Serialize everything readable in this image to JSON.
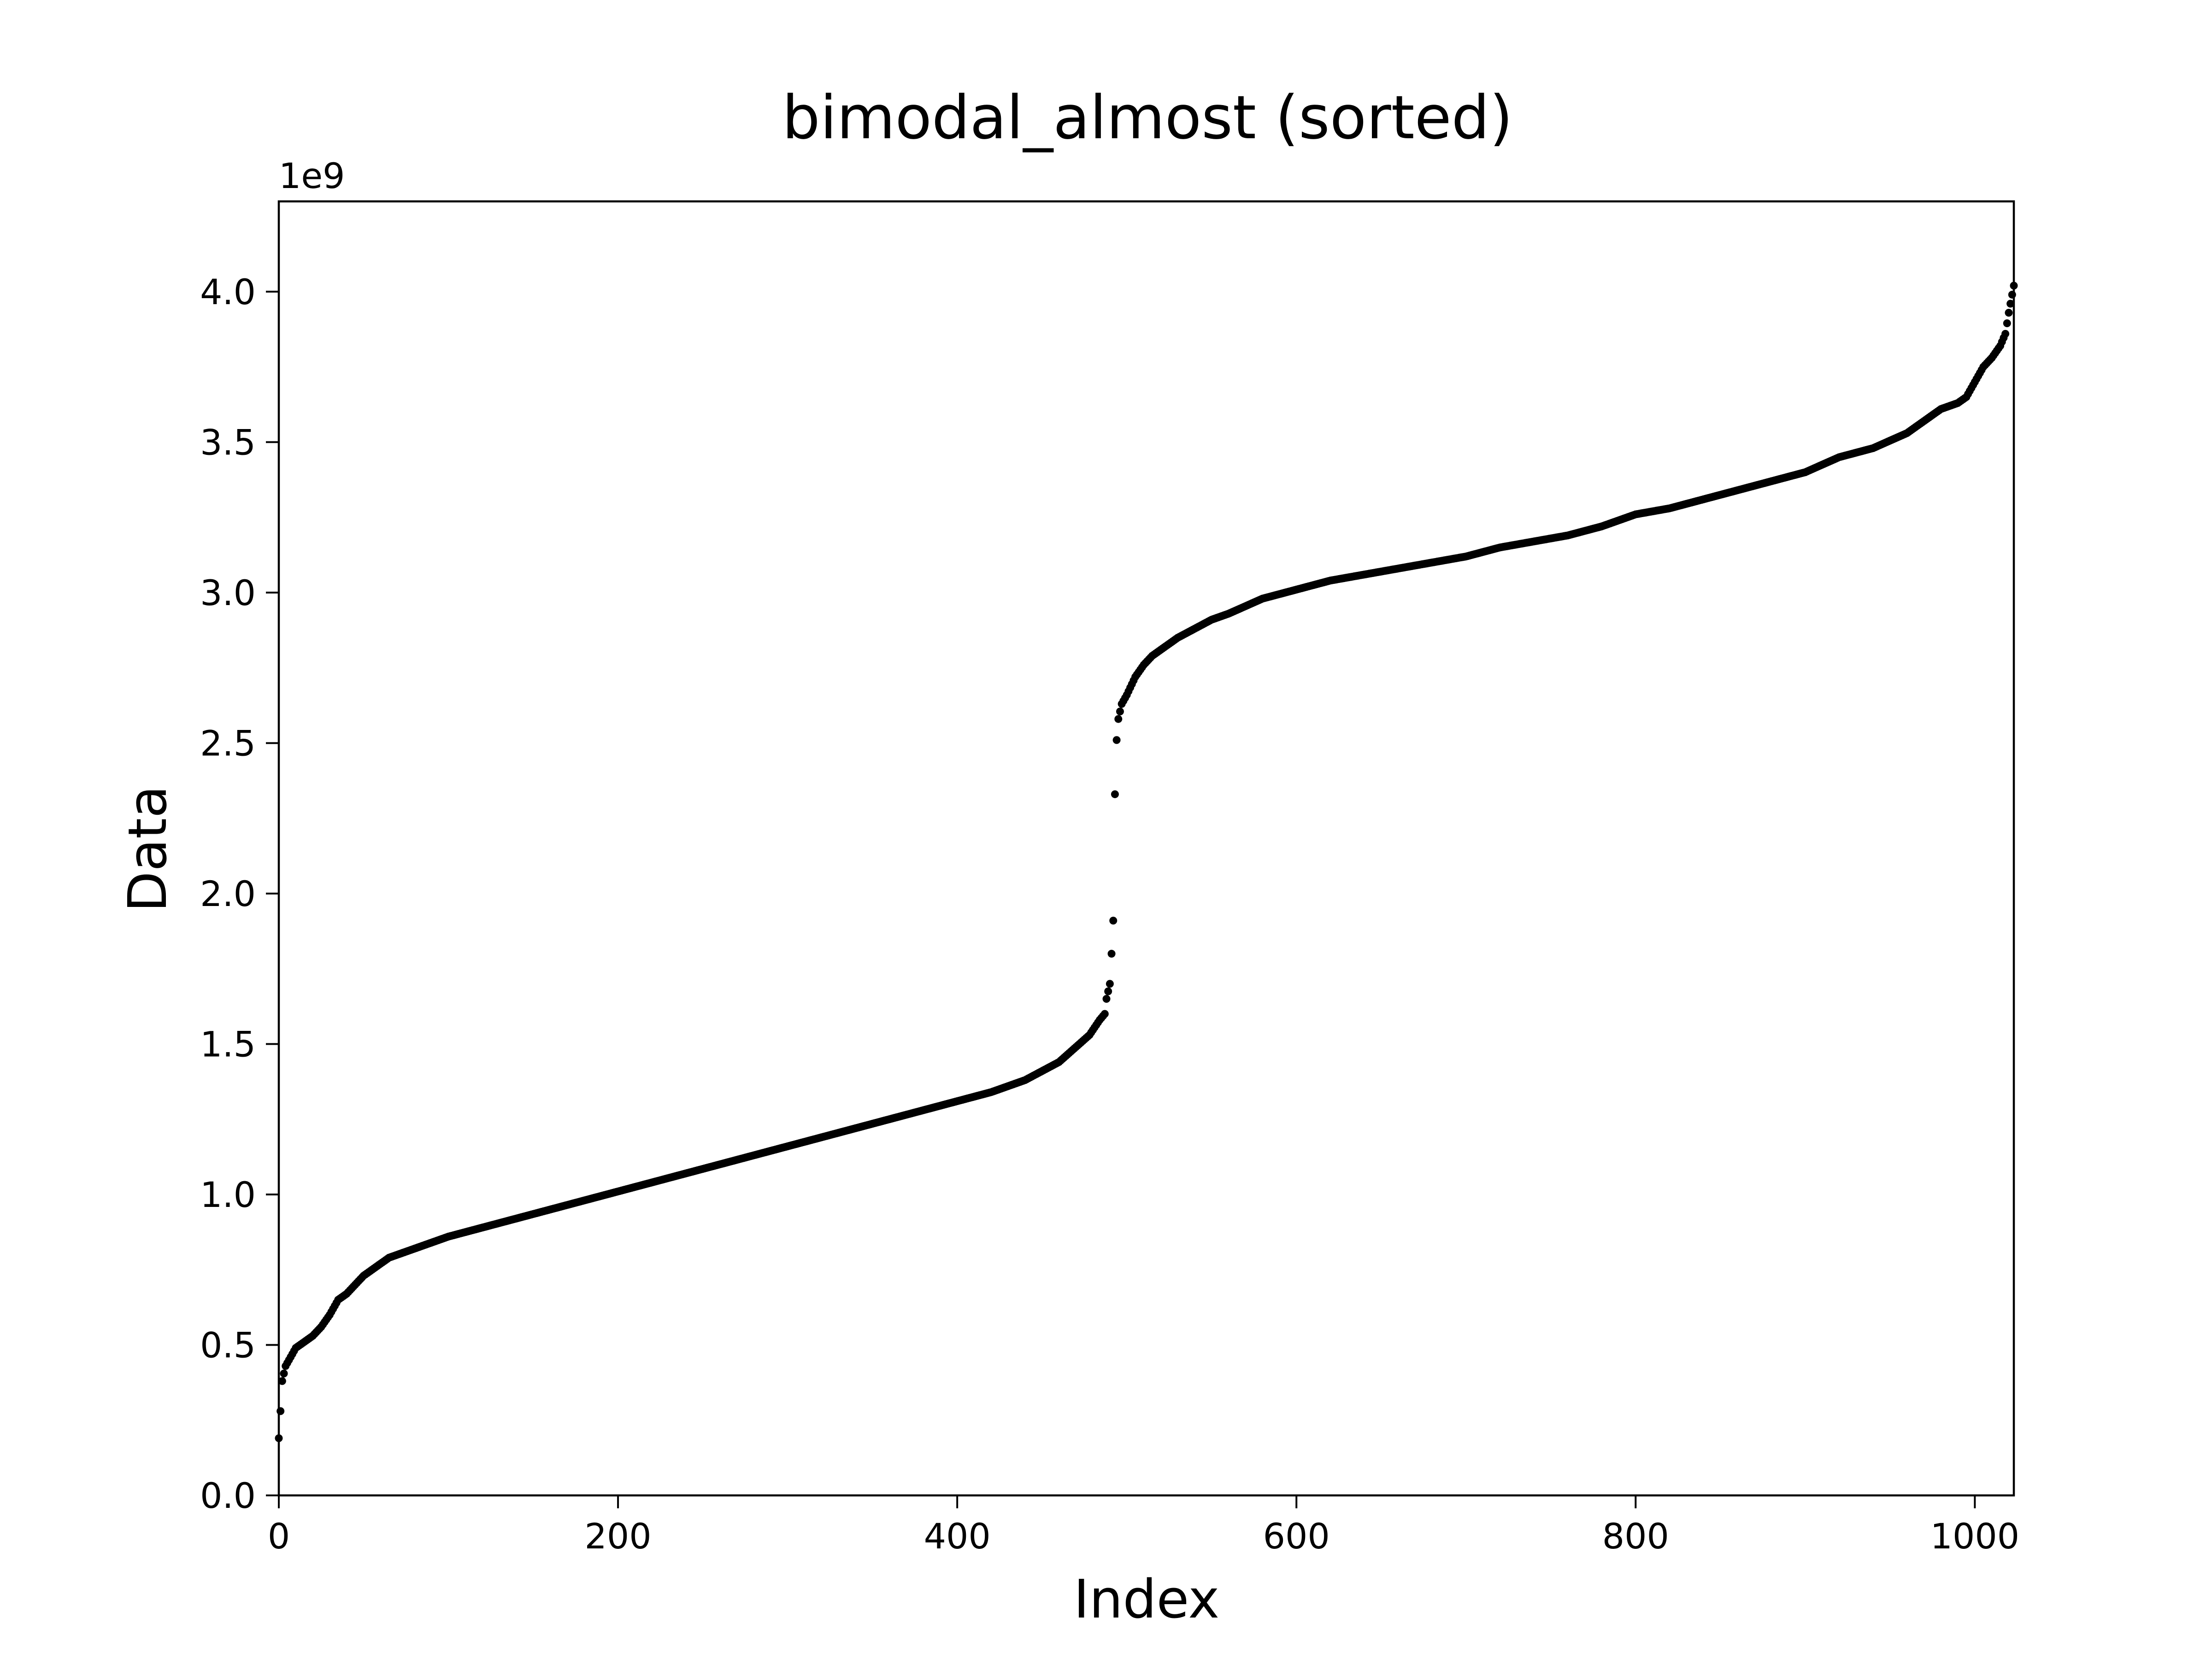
{
  "chart_data": {
    "type": "scatter",
    "title": "bimodal_almost (sorted)",
    "xlabel": "Index",
    "ylabel": "Data",
    "y_offset_label": "1e9",
    "xlim": [
      0,
      1023
    ],
    "ylim": [
      0,
      4.3
    ],
    "x_ticks": [
      0,
      200,
      400,
      600,
      800,
      1000
    ],
    "y_ticks": [
      0.0,
      0.5,
      1.0,
      1.5,
      2.0,
      2.5,
      3.0,
      3.5,
      4.0
    ],
    "x_tick_labels": [
      "0",
      "200",
      "400",
      "600",
      "800",
      "1000"
    ],
    "y_tick_labels": [
      "0.0",
      "0.5",
      "1.0",
      "1.5",
      "2.0",
      "2.5",
      "3.0",
      "3.5",
      "4.0"
    ],
    "grid": false,
    "marker_color": "#000000",
    "series": [
      {
        "x": [
          0,
          1,
          2,
          4,
          6,
          10,
          15,
          20,
          25,
          30,
          35,
          40,
          45,
          50,
          55,
          60,
          65,
          70,
          80,
          90,
          100,
          120,
          140,
          160,
          180,
          200,
          220,
          240,
          260,
          280,
          300,
          320,
          340,
          360,
          380,
          400,
          420,
          440,
          450,
          460,
          470,
          478,
          484,
          487,
          488,
          490,
          491,
          492,
          493,
          494,
          495,
          497,
          500,
          505,
          510,
          515,
          520,
          530,
          540,
          550,
          560,
          580,
          600,
          620,
          640,
          660,
          680,
          700,
          720,
          740,
          760,
          780,
          800,
          820,
          840,
          860,
          880,
          900,
          920,
          940,
          960,
          970,
          980,
          990,
          995,
          1000,
          1005,
          1010,
          1015,
          1018,
          1020,
          1022,
          1023
        ],
        "y": [
          0.19,
          0.28,
          0.38,
          0.43,
          0.45,
          0.49,
          0.51,
          0.53,
          0.56,
          0.6,
          0.65,
          0.67,
          0.7,
          0.73,
          0.75,
          0.77,
          0.79,
          0.8,
          0.82,
          0.84,
          0.86,
          0.89,
          0.92,
          0.95,
          0.98,
          1.01,
          1.04,
          1.07,
          1.1,
          1.13,
          1.16,
          1.19,
          1.22,
          1.25,
          1.28,
          1.31,
          1.34,
          1.38,
          1.41,
          1.44,
          1.49,
          1.53,
          1.58,
          1.6,
          1.65,
          1.7,
          1.8,
          1.91,
          2.33,
          2.51,
          2.58,
          2.63,
          2.66,
          2.72,
          2.76,
          2.79,
          2.81,
          2.85,
          2.88,
          2.91,
          2.93,
          2.98,
          3.01,
          3.04,
          3.06,
          3.08,
          3.1,
          3.12,
          3.15,
          3.17,
          3.19,
          3.22,
          3.26,
          3.28,
          3.31,
          3.34,
          3.37,
          3.4,
          3.45,
          3.48,
          3.53,
          3.57,
          3.61,
          3.63,
          3.65,
          3.7,
          3.75,
          3.78,
          3.82,
          3.86,
          3.93,
          3.99,
          4.02
        ]
      }
    ]
  }
}
